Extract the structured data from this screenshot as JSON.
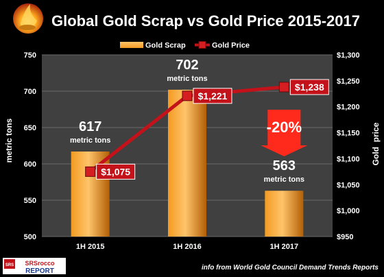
{
  "chart_data": {
    "type": "bar",
    "title": "Global Gold Scrap vs Gold Price 2015-2017",
    "categories": [
      "1H 2015",
      "1H 2016",
      "1H 2017"
    ],
    "series": [
      {
        "name": "Gold Scrap",
        "type": "bar",
        "axis": "left",
        "values": [
          617,
          702,
          563
        ],
        "labels": [
          "617",
          "702",
          "563"
        ],
        "unit_label": "metric tons"
      },
      {
        "name": "Gold Price",
        "type": "line",
        "axis": "right",
        "values": [
          1075,
          1221,
          1238
        ],
        "labels": [
          "$1,075",
          "$1,221",
          "$1,238"
        ]
      }
    ],
    "ylabel": "metric tons",
    "y2label": "Gold  price",
    "ylim": [
      500,
      750
    ],
    "y2lim": [
      950,
      1300
    ],
    "yticks": [
      "500",
      "550",
      "600",
      "650",
      "700",
      "750"
    ],
    "y2ticks": [
      "$950",
      "$1,000",
      "$1,050",
      "$1,100",
      "$1,150",
      "$1,200",
      "$1,250",
      "$1,300"
    ],
    "annotation": "-20%",
    "legend_position": "top-center",
    "grid": true,
    "source": "info from World Gold Council Demand Trends Reports",
    "logo_text": "SRSrocco REPORT",
    "colors": {
      "background": "#000000",
      "plot_background": "#404040",
      "gridline": "#6a6a6a",
      "bar_light": "#ffc46a",
      "bar_mid": "#f39a22",
      "bar_dark": "#b35f06",
      "line": "#c4121a",
      "marker": "#d41e22",
      "label_box": "#c4121a",
      "arrow": "#ff2a1c",
      "text": "#ffffff"
    }
  }
}
